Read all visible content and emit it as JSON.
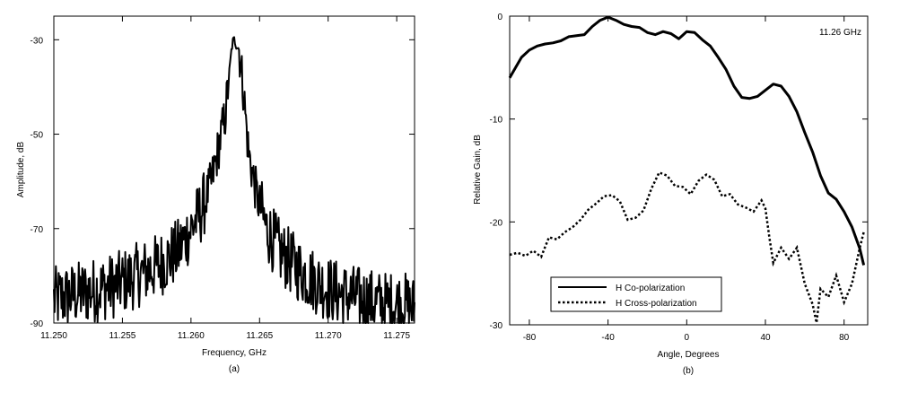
{
  "chart_data": [
    {
      "type": "line",
      "caption": "(a)",
      "xlabel": "Frequency, GHz",
      "ylabel": "Amplitude, dB",
      "xlim": [
        11.25,
        11.2763
      ],
      "ylim": [
        -90,
        -25
      ],
      "x_ticks": [
        11.25,
        11.255,
        11.26,
        11.265,
        11.27,
        11.275
      ],
      "x_tick_labels": [
        "11.250",
        "11.255",
        "11.260",
        "11.265",
        "11.270",
        "11.275"
      ],
      "y_ticks": [
        -30,
        -50,
        -70,
        -90
      ],
      "y_tick_labels": [
        "-30",
        "-50",
        "-70",
        "-90"
      ],
      "grid": false,
      "series": [
        {
          "style": "solid",
          "x": [
            11.25,
            11.2515,
            11.253,
            11.2545,
            11.256,
            11.2575,
            11.259,
            11.26,
            11.2608,
            11.2615,
            11.262,
            11.2625,
            11.2628,
            11.263,
            11.2632,
            11.2635,
            11.2638,
            11.2642,
            11.2648,
            11.2655,
            11.2665,
            11.268,
            11.2695,
            11.271,
            11.2725,
            11.274,
            11.2755,
            11.2763
          ],
          "y": [
            -85,
            -84,
            -83,
            -82,
            -80,
            -78,
            -75,
            -70,
            -66,
            -60,
            -53,
            -46,
            -37,
            -31,
            -30,
            -32,
            -40,
            -54,
            -63,
            -70,
            -75,
            -79,
            -82,
            -84,
            -85,
            -86,
            -86,
            -87
          ]
        }
      ]
    },
    {
      "type": "line",
      "caption": "(b)",
      "xlabel": "Angle, Degrees",
      "ylabel": "Relative Gain, dB",
      "xlim": [
        -90,
        92
      ],
      "ylim": [
        -30,
        0
      ],
      "x_ticks": [
        -80,
        -40,
        0,
        40,
        80
      ],
      "x_tick_labels": [
        "-80",
        "-40",
        "0",
        "40",
        "80"
      ],
      "y_ticks": [
        0,
        -10,
        -20,
        -30
      ],
      "y_tick_labels": [
        "0",
        "-10",
        "-20",
        "-30"
      ],
      "grid": false,
      "annotation": "11.26 GHz",
      "legend_placement": "bottom-left",
      "series": [
        {
          "name": "H Co-polarization",
          "style": "solid",
          "x": [
            -90,
            -87,
            -84,
            -80,
            -76,
            -72,
            -68,
            -64,
            -60,
            -56,
            -52,
            -48,
            -44,
            -40,
            -36,
            -32,
            -28,
            -24,
            -20,
            -16,
            -12,
            -8,
            -4,
            0,
            4,
            8,
            12,
            16,
            20,
            24,
            28,
            32,
            36,
            40,
            44,
            48,
            52,
            56,
            60,
            64,
            68,
            72,
            76,
            80,
            84,
            88,
            90
          ],
          "y": [
            -6,
            -5,
            -4,
            -3.3,
            -2.9,
            -2.7,
            -2.6,
            -2.4,
            -2.0,
            -1.9,
            -1.8,
            -1.0,
            -0.4,
            -0.1,
            -0.4,
            -0.8,
            -1.0,
            -1.1,
            -1.6,
            -1.8,
            -1.5,
            -1.7,
            -2.2,
            -1.5,
            -1.6,
            -2.3,
            -2.9,
            -4.0,
            -5.2,
            -6.8,
            -7.9,
            -8.0,
            -7.8,
            -7.2,
            -6.6,
            -6.8,
            -7.8,
            -9.3,
            -11.3,
            -13.2,
            -15.5,
            -17.2,
            -17.8,
            -19.0,
            -20.5,
            -22.6,
            -24.2
          ]
        },
        {
          "name": "H Cross-polarization",
          "style": "dotted",
          "x": [
            -90,
            -86,
            -82,
            -78,
            -74,
            -70,
            -66,
            -62,
            -58,
            -54,
            -50,
            -46,
            -42,
            -38,
            -34,
            -30,
            -26,
            -22,
            -18,
            -14,
            -10,
            -6,
            -2,
            2,
            6,
            10,
            14,
            18,
            22,
            26,
            30,
            34,
            38,
            40,
            42,
            44,
            48,
            52,
            56,
            60,
            64,
            66,
            68,
            72,
            76,
            80,
            84,
            88,
            90
          ],
          "y": [
            -23.2,
            -23.0,
            -23.3,
            -22.8,
            -23.4,
            -21.5,
            -21.7,
            -21.0,
            -20.5,
            -19.8,
            -18.8,
            -18.2,
            -17.5,
            -17.4,
            -18.0,
            -19.8,
            -19.6,
            -18.9,
            -16.8,
            -15.2,
            -15.5,
            -16.5,
            -16.6,
            -17.3,
            -16.0,
            -15.4,
            -15.9,
            -17.5,
            -17.3,
            -18.3,
            -18.6,
            -19.0,
            -17.9,
            -18.7,
            -21.5,
            -24.0,
            -22.5,
            -23.6,
            -22.5,
            -26.0,
            -28.0,
            -29.8,
            -26.5,
            -27.3,
            -25.2,
            -27.8,
            -26.0,
            -22.5,
            -21.0
          ]
        }
      ]
    }
  ]
}
